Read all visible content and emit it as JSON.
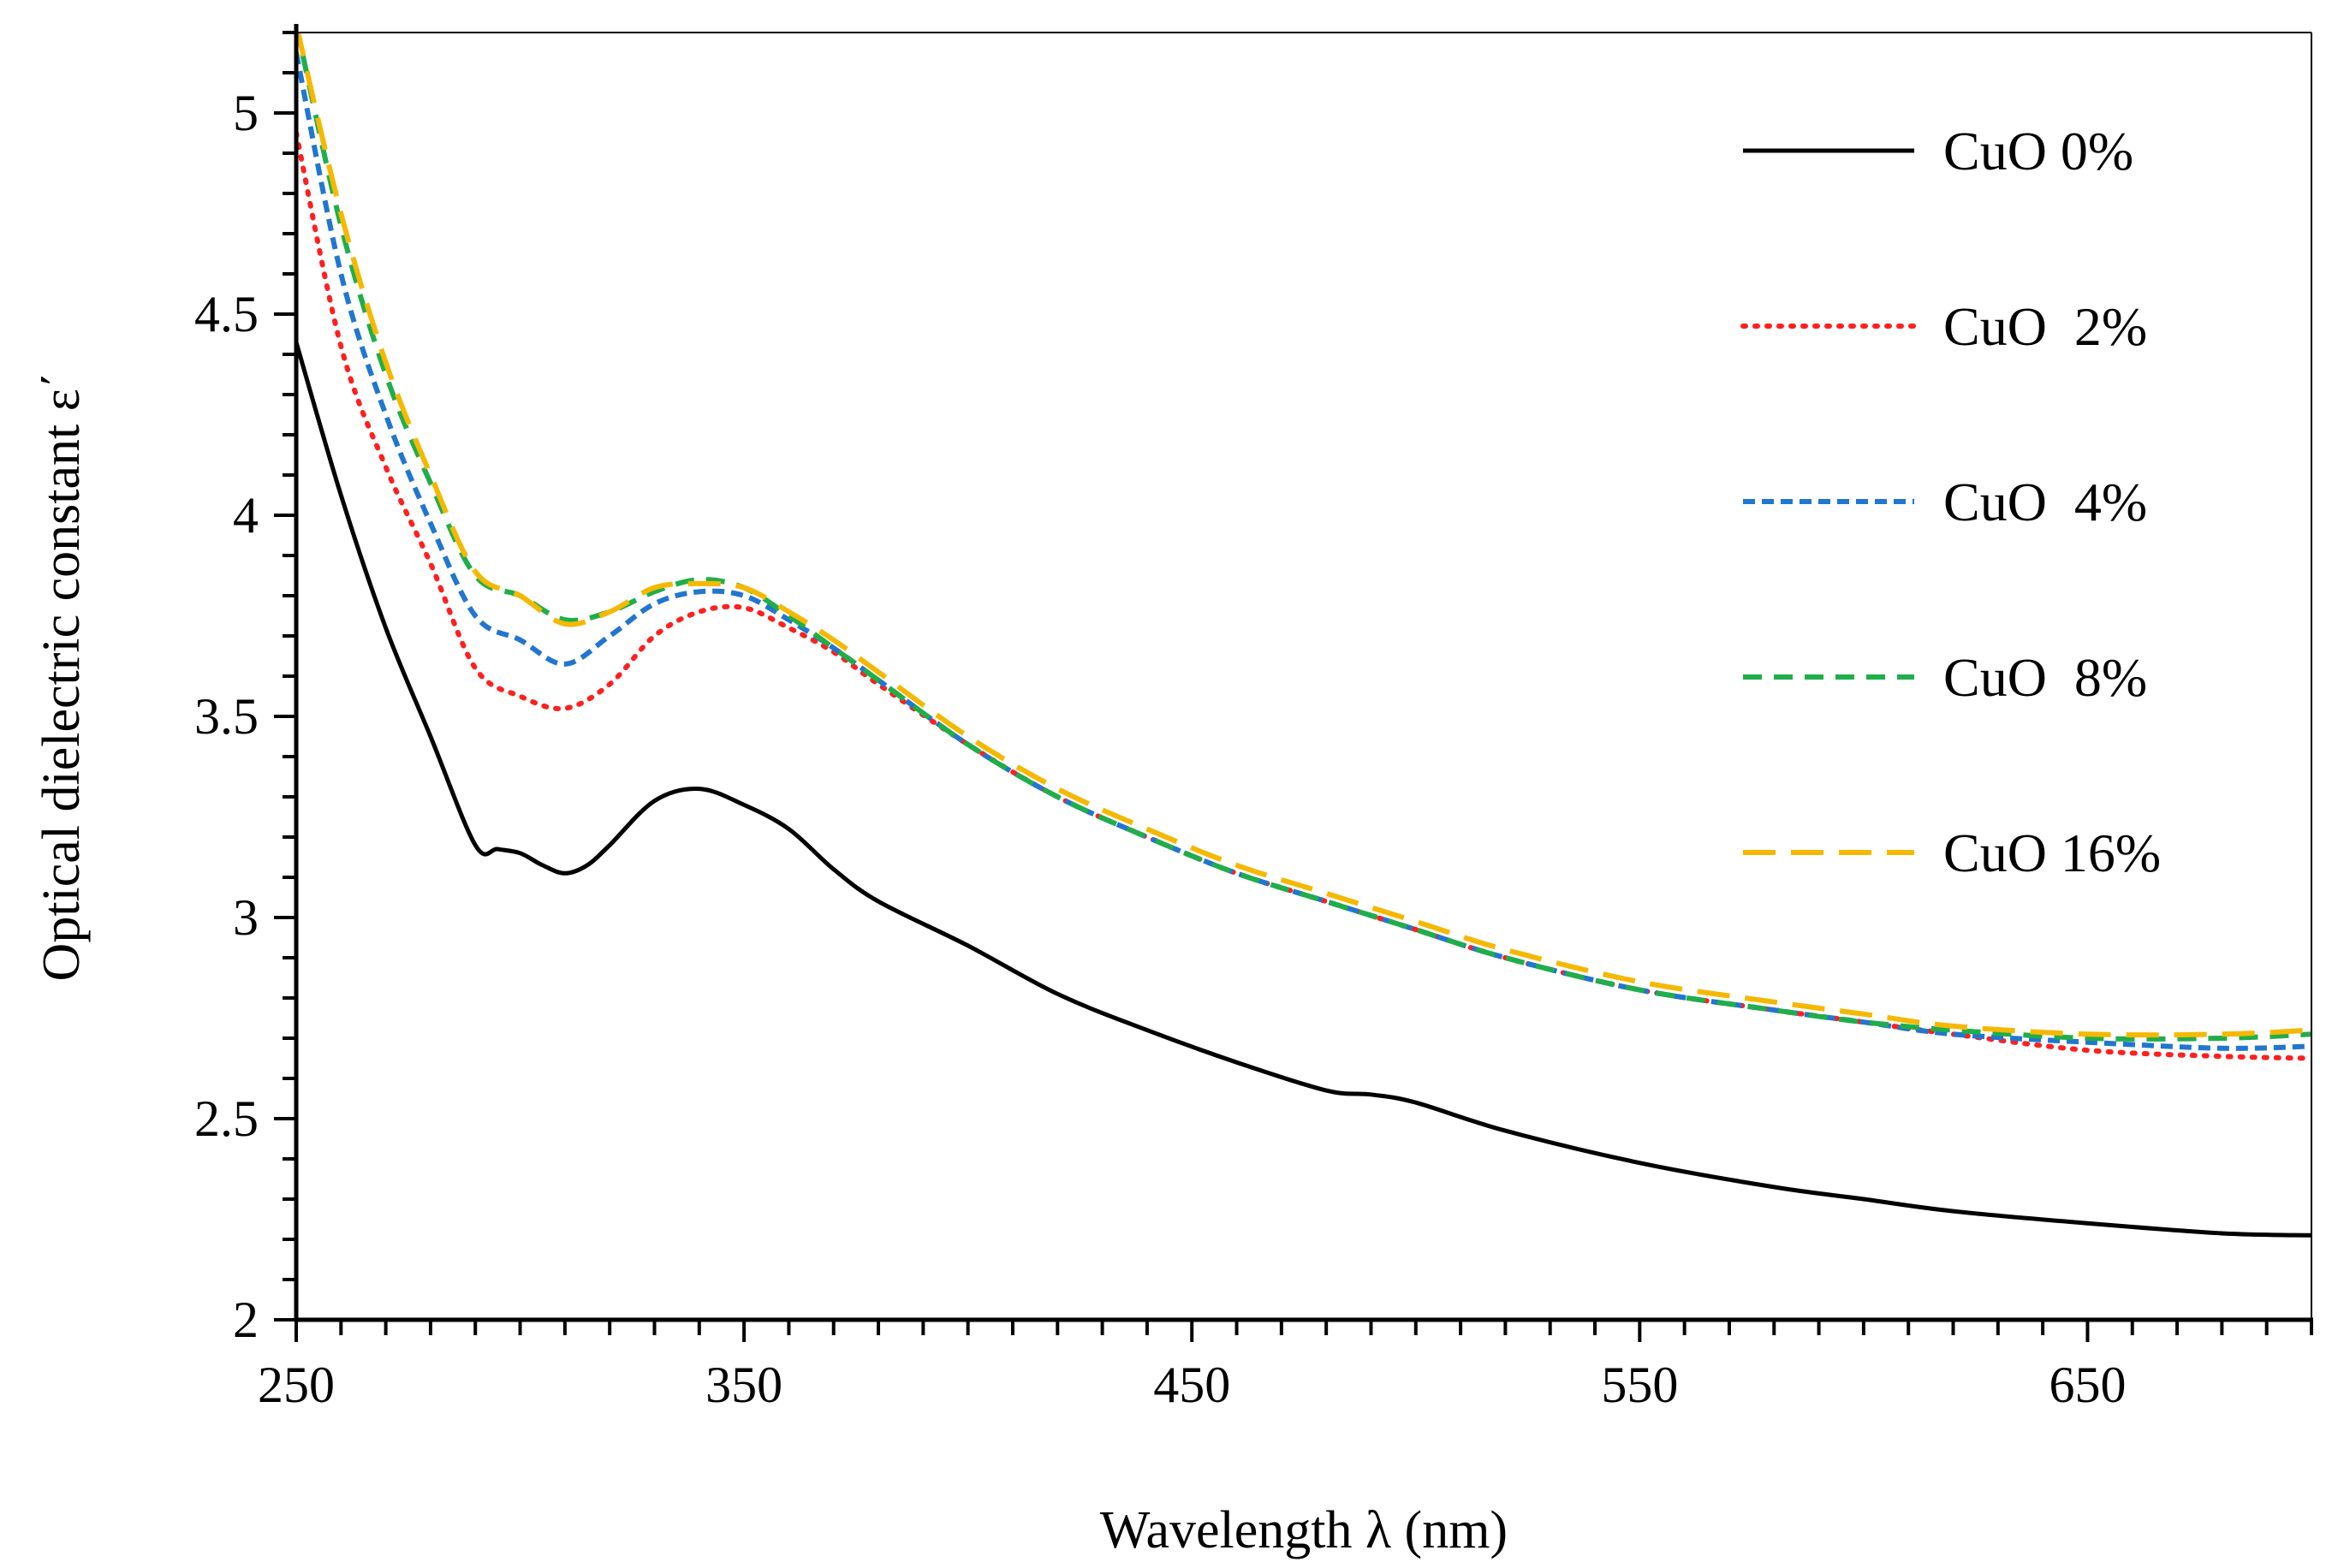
{
  "chart_data": {
    "type": "line",
    "title": "",
    "xlabel": "Wavelength λ (nm)",
    "ylabel": "Optical dielectric  constant  ε΄",
    "xlim": [
      250,
      700
    ],
    "ylim": [
      2,
      5.2
    ],
    "xticks": [
      250,
      350,
      450,
      550,
      650
    ],
    "yticks": [
      2,
      2.5,
      3,
      3.5,
      4,
      4.5,
      5
    ],
    "xtick_labels": [
      "250",
      "350",
      "450",
      "550",
      "650"
    ],
    "ytick_labels": [
      "2",
      "2.5",
      "3",
      "3.5",
      "4",
      "4.5",
      "5"
    ],
    "grid": false,
    "legend_position": "top-right",
    "series": [
      {
        "name": "CuO 0%",
        "color": "#000000",
        "dash": "solid",
        "x": [
          250,
          260,
          270,
          280,
          290,
          295,
          300,
          305,
          310,
          315,
          320,
          330,
          340,
          350,
          360,
          370,
          380,
          400,
          420,
          440,
          460,
          480,
          490,
          500,
          520,
          550,
          580,
          600,
          620,
          650,
          680,
          700
        ],
        "y": [
          4.43,
          4.05,
          3.72,
          3.45,
          3.18,
          3.17,
          3.16,
          3.13,
          3.11,
          3.13,
          3.18,
          3.29,
          3.32,
          3.28,
          3.22,
          3.12,
          3.04,
          2.93,
          2.81,
          2.72,
          2.64,
          2.57,
          2.56,
          2.54,
          2.47,
          2.39,
          2.33,
          2.3,
          2.27,
          2.24,
          2.215,
          2.21
        ]
      },
      {
        "name": "CuO  2%",
        "color": "#ff1f1f",
        "dash": "dotted",
        "x": [
          250,
          260,
          270,
          280,
          290,
          300,
          310,
          320,
          330,
          340,
          350,
          360,
          370,
          380,
          400,
          420,
          440,
          460,
          480,
          500,
          520,
          550,
          580,
          600,
          620,
          650,
          680,
          700
        ],
        "y": [
          4.95,
          4.42,
          4.12,
          3.88,
          3.62,
          3.55,
          3.52,
          3.58,
          3.7,
          3.76,
          3.77,
          3.72,
          3.66,
          3.58,
          3.43,
          3.3,
          3.2,
          3.11,
          3.04,
          2.97,
          2.9,
          2.82,
          2.77,
          2.74,
          2.71,
          2.67,
          2.655,
          2.65
        ]
      },
      {
        "name": "CuO  4%",
        "color": "#2176d0",
        "dash": "short-dash",
        "x": [
          250,
          260,
          270,
          280,
          290,
          300,
          310,
          320,
          330,
          340,
          350,
          360,
          370,
          380,
          400,
          420,
          440,
          460,
          480,
          500,
          520,
          550,
          580,
          600,
          620,
          650,
          680,
          700
        ],
        "y": [
          5.15,
          4.6,
          4.25,
          3.98,
          3.75,
          3.69,
          3.63,
          3.7,
          3.78,
          3.81,
          3.8,
          3.74,
          3.67,
          3.59,
          3.43,
          3.3,
          3.2,
          3.11,
          3.04,
          2.97,
          2.9,
          2.82,
          2.77,
          2.74,
          2.71,
          2.69,
          2.675,
          2.68
        ]
      },
      {
        "name": "CuO  8%",
        "color": "#1fae4a",
        "dash": "dash",
        "x": [
          250,
          260,
          270,
          280,
          290,
          300,
          310,
          320,
          330,
          340,
          350,
          360,
          370,
          380,
          400,
          420,
          440,
          460,
          480,
          500,
          520,
          550,
          580,
          600,
          620,
          650,
          680,
          700
        ],
        "y": [
          5.22,
          4.72,
          4.35,
          4.08,
          3.85,
          3.8,
          3.74,
          3.76,
          3.81,
          3.84,
          3.82,
          3.75,
          3.67,
          3.59,
          3.43,
          3.3,
          3.2,
          3.11,
          3.04,
          2.97,
          2.9,
          2.82,
          2.77,
          2.74,
          2.72,
          2.7,
          2.7,
          2.71
        ]
      },
      {
        "name": "CuO 16%",
        "color": "#f5b800",
        "dash": "long-dash",
        "x": [
          250,
          260,
          270,
          280,
          290,
          300,
          310,
          320,
          330,
          340,
          350,
          360,
          370,
          380,
          400,
          420,
          440,
          460,
          480,
          500,
          520,
          550,
          580,
          600,
          620,
          650,
          680,
          700
        ],
        "y": [
          5.22,
          4.75,
          4.38,
          4.1,
          3.86,
          3.8,
          3.73,
          3.76,
          3.82,
          3.83,
          3.82,
          3.76,
          3.69,
          3.61,
          3.45,
          3.32,
          3.22,
          3.13,
          3.06,
          2.99,
          2.92,
          2.84,
          2.79,
          2.76,
          2.73,
          2.71,
          2.71,
          2.72
        ]
      }
    ]
  }
}
